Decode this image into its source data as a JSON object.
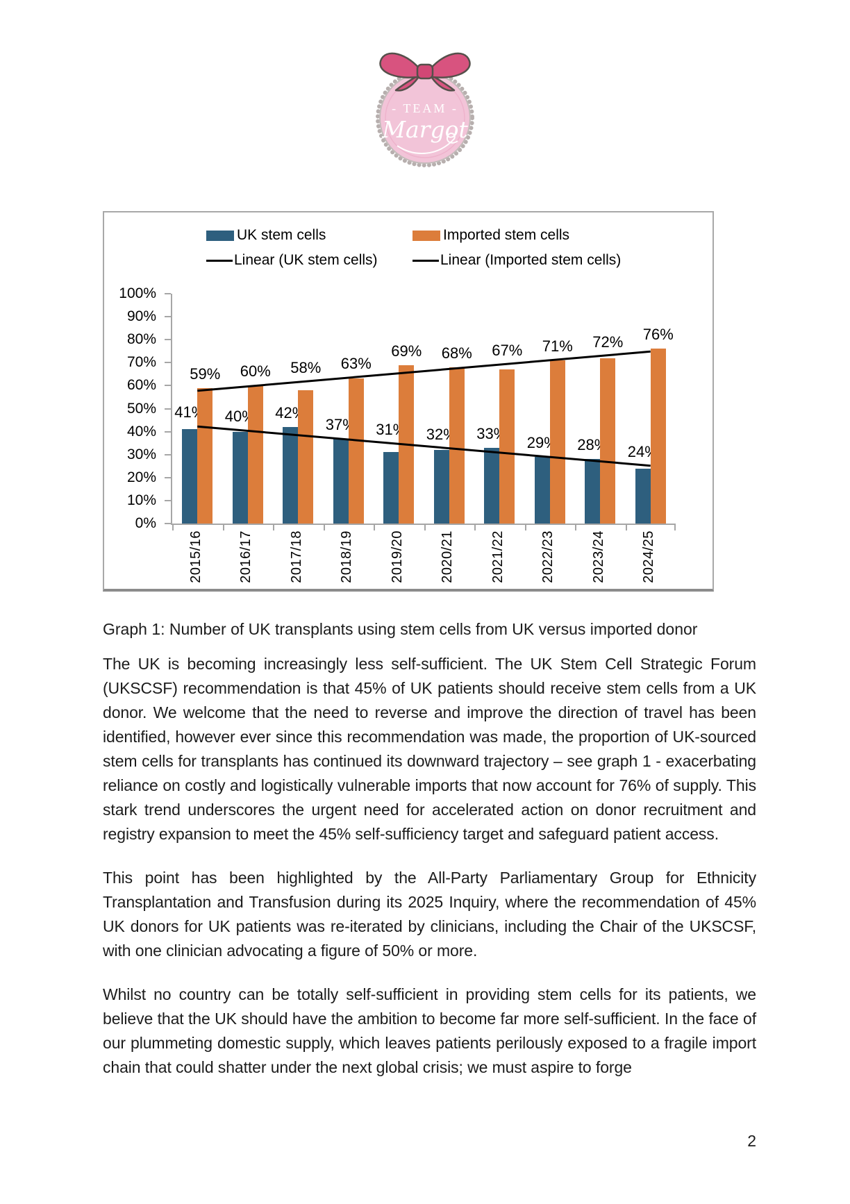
{
  "logo": {
    "team_text": "- TEAM -",
    "name_text": "Margot",
    "circle_color": "#f2c4d8",
    "ring_color": "#b7afae",
    "bow_color": "#d8537f",
    "bow_outline": "#55504b",
    "text_color": "#ffffff"
  },
  "chart_data": {
    "type": "bar",
    "categories": [
      "2015/16",
      "2016/17",
      "2017/18",
      "2018/19",
      "2019/20",
      "2020/21",
      "2021/22",
      "2022/23",
      "2023/24",
      "2024/25"
    ],
    "series": [
      {
        "name": "UK stem cells",
        "color": "#2e5f7e",
        "values": [
          41,
          40,
          42,
          37,
          31,
          32,
          33,
          29,
          28,
          24
        ]
      },
      {
        "name": "Imported stem cells",
        "color": "#dc7d3b",
        "values": [
          59,
          60,
          58,
          63,
          69,
          68,
          67,
          71,
          72,
          76
        ]
      }
    ],
    "trendlines": [
      {
        "name": "Linear (UK stem cells)",
        "series": 0,
        "color": "#000000"
      },
      {
        "name": "Linear (Imported stem cells)",
        "series": 1,
        "color": "#000000"
      }
    ],
    "legend": [
      {
        "label": "UK stem cells",
        "swatch": "rect",
        "color": "#2e5f7e"
      },
      {
        "label": "Imported stem cells",
        "swatch": "rect",
        "color": "#dc7d3b"
      },
      {
        "label": "Linear (UK stem cells)",
        "swatch": "line",
        "color": "#000000"
      },
      {
        "label": "Linear (Imported stem cells)",
        "swatch": "line",
        "color": "#000000"
      }
    ],
    "ylim": [
      0,
      100
    ],
    "ytick_step": 10,
    "value_suffix": "%",
    "grid": false,
    "legend_position": "top",
    "axis_color": "#a6a6a6"
  },
  "caption": "Graph 1: Number of UK transplants using stem cells from UK versus imported donor",
  "paragraphs": [
    "The UK is becoming increasingly less self-sufficient.  The UK Stem Cell Strategic Forum (UKSCSF) recommendation is that 45% of UK patients should receive stem cells from a UK donor.  We welcome that the need to reverse and improve the direction of travel has been identified, however ever since this recommendation was made, the proportion of UK-sourced stem cells for transplants has continued its downward trajectory – see graph 1 - exacerbating reliance on costly and logistically vulnerable imports that now account for 76% of supply. This stark trend underscores the urgent need for accelerated action on donor recruitment and registry expansion to meet the 45% self-sufficiency target and safeguard patient access.",
    "This point has been highlighted by the All-Party Parliamentary Group for Ethnicity Transplantation and Transfusion during its 2025 Inquiry, where the recommendation of 45% UK donors for UK patients was re-iterated by clinicians, including the Chair of the UKSCSF, with one clinician advocating a figure of 50% or more.",
    "Whilst no country can be totally self-sufficient in providing stem cells for its patients, we believe that the UK should have the ambition to become far more self-sufficient. In the face of our plummeting domestic supply, which leaves patients perilously exposed to a fragile import chain that could shatter under the next global crisis; we must aspire to forge"
  ],
  "page_number": "2"
}
